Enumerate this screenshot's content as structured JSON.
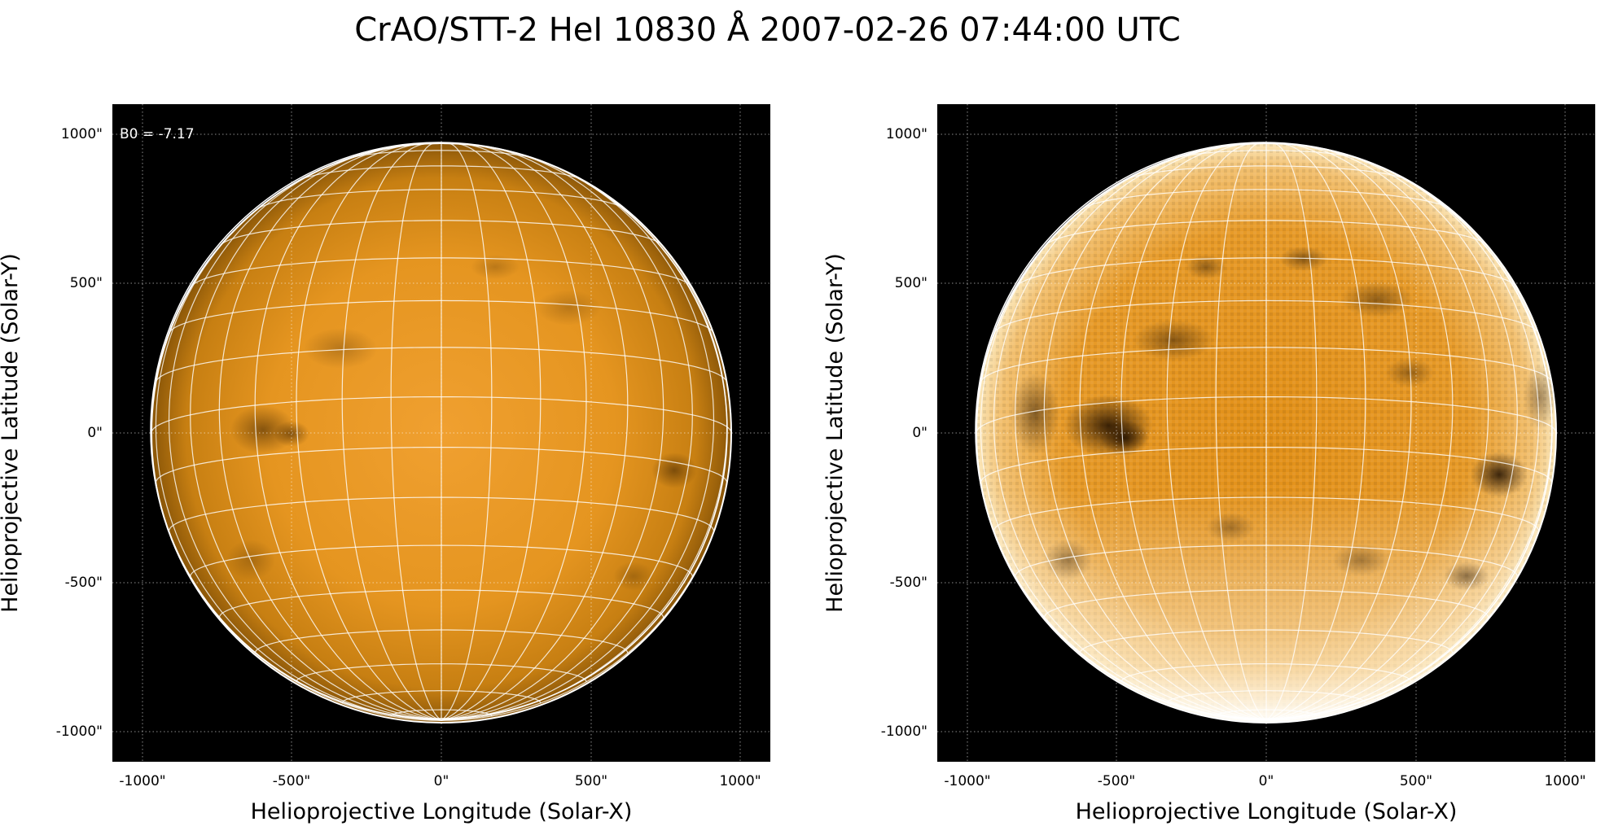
{
  "figure": {
    "title": "CrAO/STT-2 HeI 10830 Å 2007-02-26 07:44:00 UTC"
  },
  "panels": [
    {
      "x_axis_label": "Helioprojective Longitude (Solar-X)",
      "y_axis_label": "Helioprojective Latitude (Solar-Y)",
      "x_tick_labels": [
        "-1000\"",
        "-500\"",
        "0\"",
        "500\"",
        "1000\""
      ],
      "y_tick_labels": [
        "1000\"",
        "500\"",
        "0\"",
        "-500\"",
        "-1000\""
      ],
      "annotation": "B0 = -7.17",
      "extent_arcsec": [
        -1100,
        1100
      ],
      "solar_radius_arcsec": 968,
      "style": "smooth"
    },
    {
      "x_axis_label": "Helioprojective Longitude (Solar-X)",
      "y_axis_label": "Helioprojective Latitude (Solar-Y)",
      "x_tick_labels": [
        "-1000\"",
        "-500\"",
        "0\"",
        "500\"",
        "1000\""
      ],
      "y_tick_labels": [
        "1000\"",
        "500\"",
        "0\"",
        "-500\"",
        "-1000\""
      ],
      "extent_arcsec": [
        -1100,
        1100
      ],
      "solar_radius_arcsec": 968,
      "style": "enhanced"
    }
  ],
  "colors": {
    "disk_center": "#f0a030",
    "disk_mid": "#e0921a",
    "disk_limb": "#8a5608",
    "background": "#000000",
    "grid": "#ffffff"
  }
}
